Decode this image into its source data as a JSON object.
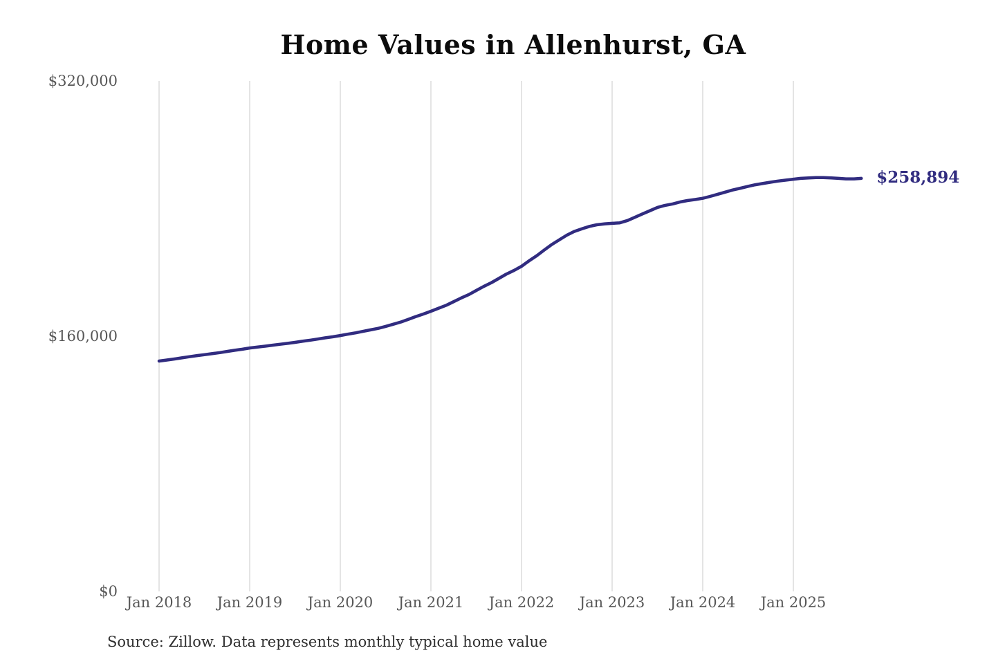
{
  "chart": {
    "title": "Home Values in Allenhurst, GA",
    "end_label": "$258,894",
    "source": "Source: Zillow. Data represents monthly typical home value"
  },
  "chart_data": {
    "type": "line",
    "title": "Home Values in Allenhurst, GA",
    "ylabel": "",
    "xlabel": "",
    "ylim": [
      0,
      320000
    ],
    "xlim": [
      2018.0,
      2025.83
    ],
    "grid": "vertical-only",
    "legend_position": "none",
    "line_color": "#312c80",
    "grid_color": "#c9c9c9",
    "tick_label_color": "#575757",
    "y_ticks": [
      {
        "value": 0,
        "label": "$0"
      },
      {
        "value": 160000,
        "label": "$160,000"
      },
      {
        "value": 320000,
        "label": "$320,000"
      }
    ],
    "x_ticks": [
      {
        "year": 2018,
        "label": "Jan 2018"
      },
      {
        "year": 2019,
        "label": "Jan 2019"
      },
      {
        "year": 2020,
        "label": "Jan 2020"
      },
      {
        "year": 2021,
        "label": "Jan 2021"
      },
      {
        "year": 2022,
        "label": "Jan 2022"
      },
      {
        "year": 2023,
        "label": "Jan 2023"
      },
      {
        "year": 2024,
        "label": "Jan 2024"
      },
      {
        "year": 2025,
        "label": "Jan 2025"
      }
    ],
    "x_unit": "decimal_year_monthly",
    "series": [
      {
        "name": "Typical home value",
        "x": [
          2018.0,
          2018.08,
          2018.17,
          2018.25,
          2018.33,
          2018.42,
          2018.5,
          2018.58,
          2018.67,
          2018.75,
          2018.83,
          2018.92,
          2019.0,
          2019.08,
          2019.17,
          2019.25,
          2019.33,
          2019.42,
          2019.5,
          2019.58,
          2019.67,
          2019.75,
          2019.83,
          2019.92,
          2020.0,
          2020.08,
          2020.17,
          2020.25,
          2020.33,
          2020.42,
          2020.5,
          2020.58,
          2020.67,
          2020.75,
          2020.83,
          2020.92,
          2021.0,
          2021.08,
          2021.17,
          2021.25,
          2021.33,
          2021.42,
          2021.5,
          2021.58,
          2021.67,
          2021.75,
          2021.83,
          2021.92,
          2022.0,
          2022.08,
          2022.17,
          2022.25,
          2022.33,
          2022.42,
          2022.5,
          2022.58,
          2022.67,
          2022.75,
          2022.83,
          2022.92,
          2023.0,
          2023.08,
          2023.17,
          2023.25,
          2023.33,
          2023.42,
          2023.5,
          2023.58,
          2023.67,
          2023.75,
          2023.83,
          2023.92,
          2024.0,
          2024.08,
          2024.17,
          2024.25,
          2024.33,
          2024.42,
          2024.5,
          2024.58,
          2024.67,
          2024.75,
          2024.83,
          2024.92,
          2025.0,
          2025.08,
          2025.17,
          2025.25,
          2025.33,
          2025.42,
          2025.5,
          2025.58,
          2025.67,
          2025.75
        ],
        "values": [
          144400,
          145000,
          145700,
          146400,
          147100,
          147800,
          148400,
          149000,
          149700,
          150400,
          151100,
          151800,
          152600,
          153100,
          153700,
          154300,
          154900,
          155500,
          156100,
          156800,
          157500,
          158200,
          158900,
          159600,
          160400,
          161200,
          162100,
          163000,
          163900,
          164900,
          166100,
          167400,
          168900,
          170500,
          172200,
          173900,
          175600,
          177400,
          179400,
          181600,
          183800,
          186100,
          188600,
          191100,
          193600,
          196200,
          198800,
          201300,
          203800,
          207100,
          210500,
          214000,
          217300,
          220500,
          223300,
          225600,
          227400,
          228800,
          229800,
          230400,
          230700,
          231000,
          232500,
          234500,
          236500,
          238700,
          240700,
          241900,
          242900,
          244100,
          245000,
          245700,
          246400,
          247600,
          249000,
          250300,
          251600,
          252800,
          253900,
          254900,
          255800,
          256500,
          257200,
          257800,
          258400,
          258900,
          259200,
          259400,
          259400,
          259200,
          258900,
          258600,
          258600,
          258894
        ]
      }
    ],
    "end_label": "$258,894",
    "source": "Source: Zillow. Data represents monthly typical home value"
  }
}
